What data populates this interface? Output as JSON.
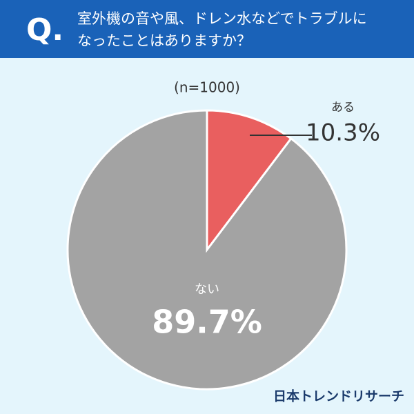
{
  "chart_data": {
    "type": "pie",
    "title_prefix": "Q.",
    "title_lines": [
      "室外機の音や風、ドレン水などでトラブルに",
      "なったことはありますか？"
    ],
    "subtitle": "(n=1000)",
    "categories": [
      "ある",
      "ない"
    ],
    "values": [
      10.3,
      89.7
    ],
    "value_labels": [
      "10.3%",
      "89.7%"
    ],
    "colors": [
      "#e95f5f",
      "#a3a3a3"
    ],
    "source": "日本トレンドリサーチ"
  }
}
